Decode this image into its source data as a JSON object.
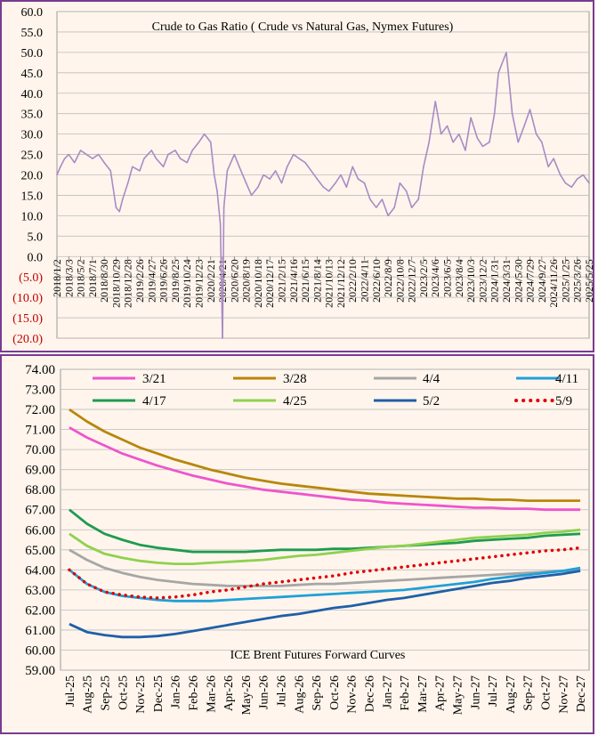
{
  "charts": [
    {
      "title": "Crude to Gas Ratio ( Crude vs Natural Gas, Nymex Futures)",
      "line_color": "#a98bc4",
      "neg_color": "#c00000"
    },
    {
      "title": "ICE Brent Futures Forward Curves"
    }
  ],
  "chart_data": [
    {
      "type": "line",
      "title": "Crude to Gas Ratio ( Crude vs Natural Gas, Nymex Futures)",
      "ylim": [
        -20,
        60
      ],
      "y_ticks": [
        "60.0",
        "55.0",
        "50.0",
        "45.0",
        "40.0",
        "35.0",
        "30.0",
        "25.0",
        "20.0",
        "15.0",
        "10.0",
        "5.0",
        "0.0",
        "(5.0)",
        "(10.0)",
        "(15.0)",
        "(20.0)"
      ],
      "x_ticks": [
        "2018/1/2",
        "2018/3/3",
        "2018/5/2",
        "2018/7/1",
        "2018/8/30",
        "2018/10/29",
        "2018/12/28",
        "2019/2/26",
        "2019/4/27",
        "2019/6/26",
        "2019/8/25",
        "2019/10/24",
        "2019/12/23",
        "2020/2/21",
        "2020/4/21",
        "2020/6/20",
        "2020/8/19",
        "2020/10/18",
        "2020/12/17",
        "2021/2/15",
        "2021/4/16",
        "2021/6/15",
        "2021/8/14",
        "2021/10/13",
        "2021/12/12",
        "2022/2/10",
        "2022/4/11",
        "2022/6/10",
        "2022/8/9",
        "2022/10/8",
        "2022/12/7",
        "2023/2/5",
        "2023/4/6",
        "2023/6/5",
        "2023/8/4",
        "2023/10/3",
        "2023/12/2",
        "2024/1/31",
        "2024/3/31",
        "2024/5/30",
        "2024/7/29",
        "2024/9/27",
        "2024/11/26",
        "2025/1/25",
        "2025/3/26",
        "2025/5/25"
      ],
      "series": [
        {
          "x": [
            "2018/1/2",
            "2018/1/20",
            "2018/2/10",
            "2018/3/3",
            "2018/4/1",
            "2018/5/2",
            "2018/6/1",
            "2018/7/1",
            "2018/8/1",
            "2018/8/30",
            "2018/10/1",
            "2018/10/29",
            "2018/11/15",
            "2018/12/1",
            "2018/12/28",
            "2019/1/20",
            "2019/2/26",
            "2019/3/20",
            "2019/4/27",
            "2019/5/20",
            "2019/6/26",
            "2019/7/20",
            "2019/8/25",
            "2019/9/20",
            "2019/10/24",
            "2019/11/20",
            "2019/12/23",
            "2020/1/20",
            "2020/2/21",
            "2020/3/10",
            "2020/3/25",
            "2020/4/10",
            "2020/4/21",
            "2020/4/28",
            "2020/5/15",
            "2020/6/20",
            "2020/7/15",
            "2020/8/19",
            "2020/9/15",
            "2020/10/18",
            "2020/11/15",
            "2020/12/17",
            "2021/1/15",
            "2021/2/15",
            "2021/3/15",
            "2021/4/16",
            "2021/5/15",
            "2021/6/15",
            "2021/7/15",
            "2021/8/14",
            "2021/9/15",
            "2021/10/13",
            "2021/11/15",
            "2021/12/12",
            "2022/1/10",
            "2022/2/10",
            "2022/3/10",
            "2022/4/11",
            "2022/5/10",
            "2022/6/10",
            "2022/7/10",
            "2022/8/9",
            "2022/9/10",
            "2022/10/8",
            "2022/11/10",
            "2022/12/7",
            "2023/1/10",
            "2023/2/5",
            "2023/3/5",
            "2023/4/6",
            "2023/5/5",
            "2023/6/5",
            "2023/7/5",
            "2023/8/4",
            "2023/9/5",
            "2023/10/3",
            "2023/11/5",
            "2023/12/2",
            "2024/1/5",
            "2024/1/31",
            "2024/2/20",
            "2024/3/31",
            "2024/4/30",
            "2024/5/30",
            "2024/6/30",
            "2024/7/29",
            "2024/8/30",
            "2024/9/27",
            "2024/10/30",
            "2024/11/26",
            "2024/12/30",
            "2025/1/25",
            "2025/2/25",
            "2025/3/26",
            "2025/4/25",
            "2025/5/25"
          ],
          "values": [
            20,
            22,
            24,
            25,
            23,
            26,
            25,
            24,
            25,
            23,
            21,
            12,
            11,
            14,
            18,
            22,
            21,
            24,
            26,
            24,
            22,
            25,
            26,
            24,
            23,
            26,
            28,
            30,
            28,
            20,
            16,
            8,
            -20,
            12,
            21,
            25,
            22,
            18,
            15,
            17,
            20,
            19,
            21,
            18,
            22,
            25,
            24,
            23,
            21,
            19,
            17,
            16,
            18,
            20,
            17,
            22,
            19,
            18,
            14,
            12,
            14,
            10,
            12,
            18,
            16,
            12,
            14,
            22,
            28,
            38,
            30,
            32,
            28,
            30,
            26,
            34,
            29,
            27,
            28,
            35,
            45,
            50,
            35,
            28,
            32,
            36,
            30,
            28,
            22,
            24,
            20,
            18,
            17,
            19,
            20,
            18
          ]
        }
      ]
    },
    {
      "type": "line",
      "title": "ICE Brent Futures Forward Curves",
      "ylim": [
        59,
        74
      ],
      "y_ticks": [
        "74.00",
        "73.00",
        "72.00",
        "71.00",
        "70.00",
        "69.00",
        "68.00",
        "67.00",
        "66.00",
        "65.00",
        "64.00",
        "63.00",
        "62.00",
        "61.00",
        "60.00",
        "59.00"
      ],
      "categories": [
        "Jul-25",
        "Aug-25",
        "Sep-25",
        "Oct-25",
        "Nov-25",
        "Dec-25",
        "Jan-26",
        "Feb-26",
        "Mar-26",
        "Apr-26",
        "May-26",
        "Jun-26",
        "Jul-26",
        "Aug-26",
        "Sep-26",
        "Oct-26",
        "Nov-26",
        "Dec-26",
        "Jan-27",
        "Feb-27",
        "Mar-27",
        "Apr-27",
        "May-27",
        "Jun-27",
        "Jul-27",
        "Aug-27",
        "Sep-27",
        "Oct-27",
        "Nov-27",
        "Dec-27"
      ],
      "series": [
        {
          "name": "3/21",
          "color": "#ee55cc",
          "dash": false,
          "values": [
            71.1,
            70.6,
            70.2,
            69.8,
            69.5,
            69.2,
            68.95,
            68.7,
            68.5,
            68.3,
            68.15,
            68.0,
            67.9,
            67.8,
            67.7,
            67.6,
            67.5,
            67.45,
            67.35,
            67.3,
            67.25,
            67.2,
            67.15,
            67.1,
            67.1,
            67.05,
            67.05,
            67.0,
            67.0,
            67.0
          ]
        },
        {
          "name": "3/28",
          "color": "#b8860b",
          "dash": false,
          "values": [
            72.0,
            71.4,
            70.9,
            70.5,
            70.1,
            69.8,
            69.5,
            69.25,
            69.0,
            68.8,
            68.6,
            68.45,
            68.3,
            68.2,
            68.1,
            68.0,
            67.9,
            67.8,
            67.75,
            67.7,
            67.65,
            67.6,
            67.55,
            67.55,
            67.5,
            67.5,
            67.45,
            67.45,
            67.45,
            67.45
          ]
        },
        {
          "name": "4/4",
          "color": "#a6a6a6",
          "dash": false,
          "values": [
            65.0,
            64.5,
            64.1,
            63.85,
            63.65,
            63.5,
            63.4,
            63.3,
            63.25,
            63.2,
            63.2,
            63.2,
            63.2,
            63.25,
            63.3,
            63.3,
            63.35,
            63.4,
            63.45,
            63.5,
            63.55,
            63.6,
            63.65,
            63.7,
            63.75,
            63.8,
            63.85,
            63.9,
            63.95,
            64.0
          ]
        },
        {
          "name": "4/11",
          "color": "#1fa0d8",
          "dash": false,
          "values": [
            64.0,
            63.3,
            62.9,
            62.7,
            62.6,
            62.5,
            62.45,
            62.45,
            62.45,
            62.5,
            62.55,
            62.6,
            62.65,
            62.7,
            62.75,
            62.8,
            62.85,
            62.9,
            62.95,
            63.0,
            63.1,
            63.2,
            63.3,
            63.4,
            63.55,
            63.65,
            63.75,
            63.85,
            63.95,
            64.1
          ]
        },
        {
          "name": "4/17",
          "color": "#1e9b4f",
          "dash": false,
          "values": [
            67.0,
            66.3,
            65.8,
            65.5,
            65.25,
            65.1,
            65.0,
            64.9,
            64.9,
            64.9,
            64.9,
            64.95,
            65.0,
            65.0,
            65.0,
            65.05,
            65.05,
            65.1,
            65.15,
            65.2,
            65.25,
            65.3,
            65.35,
            65.45,
            65.5,
            65.55,
            65.6,
            65.7,
            65.75,
            65.8
          ]
        },
        {
          "name": "4/25",
          "color": "#8fd14f",
          "dash": false,
          "values": [
            65.8,
            65.2,
            64.8,
            64.6,
            64.45,
            64.35,
            64.3,
            64.3,
            64.35,
            64.4,
            64.45,
            64.5,
            64.6,
            64.7,
            64.75,
            64.85,
            64.95,
            65.05,
            65.15,
            65.2,
            65.3,
            65.4,
            65.5,
            65.6,
            65.65,
            65.7,
            65.75,
            65.85,
            65.9,
            66.0
          ]
        },
        {
          "name": "5/2",
          "color": "#1f5fa8",
          "dash": false,
          "values": [
            61.3,
            60.9,
            60.75,
            60.65,
            60.65,
            60.7,
            60.8,
            60.95,
            61.1,
            61.25,
            61.4,
            61.55,
            61.7,
            61.8,
            61.95,
            62.1,
            62.2,
            62.35,
            62.5,
            62.6,
            62.75,
            62.9,
            63.05,
            63.2,
            63.35,
            63.45,
            63.6,
            63.7,
            63.8,
            63.95
          ]
        },
        {
          "name": "5/9",
          "color": "#e00000",
          "dash": true,
          "values": [
            64.0,
            63.3,
            62.9,
            62.75,
            62.65,
            62.6,
            62.65,
            62.75,
            62.9,
            63.0,
            63.15,
            63.3,
            63.4,
            63.5,
            63.6,
            63.7,
            63.85,
            63.95,
            64.05,
            64.15,
            64.25,
            64.35,
            64.45,
            64.55,
            64.65,
            64.75,
            64.85,
            64.95,
            65.0,
            65.1
          ]
        }
      ]
    }
  ]
}
